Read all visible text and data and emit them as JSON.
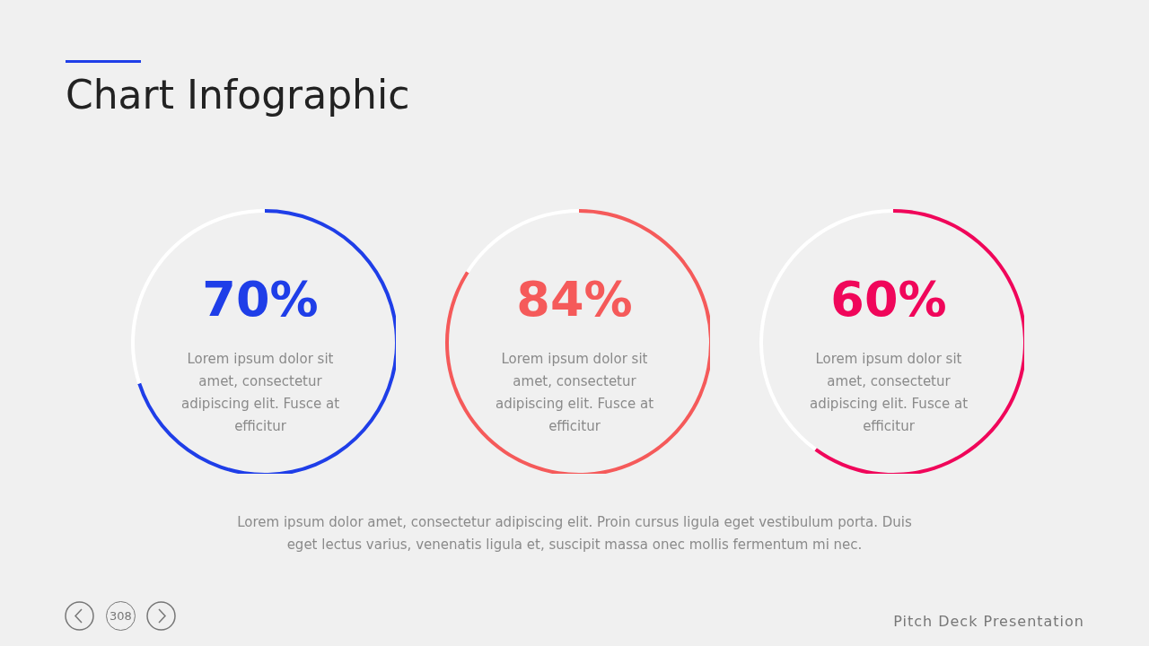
{
  "chart_data": [
    {
      "type": "other",
      "title": "Chart Infographic",
      "annotations": [
        "Lorem ipsum dolor amet, consectetur adipiscing elit. Proin cursus ligula eget vestibulum porta. Duis eget lectus varius, venenatis ligula et, suscipit massa onec mollis fermentum mi nec.",
        "308",
        "Pitch Deck Presentation"
      ]
    },
    {
      "type": "donut",
      "categories": [
        null,
        null
      ],
      "values": [
        70,
        30
      ],
      "colors": [
        "#1f3ee8",
        "#ffffff"
      ],
      "value_labels": [
        "70%",
        null
      ],
      "annotations": [
        "Lorem ipsum dolor sit amet, consectetur adipiscing elit. Fusce at efficitur"
      ]
    },
    {
      "type": "donut",
      "categories": [
        null,
        null
      ],
      "values": [
        84,
        16
      ],
      "colors": [
        "#f55a5a",
        "#ffffff"
      ],
      "value_labels": [
        "84%",
        null
      ],
      "annotations": [
        "Lorem ipsum dolor sit amet, consectetur adipiscing elit. Fusce at efficitur"
      ]
    },
    {
      "type": "donut",
      "categories": [
        null,
        null
      ],
      "values": [
        60,
        40
      ],
      "colors": [
        "#f0065a",
        "#ffffff"
      ],
      "value_labels": [
        "60%",
        null
      ],
      "annotations": [
        "Lorem ipsum dolor sit amet, consectetur adipiscing elit. Fusce at efficitur"
      ]
    }
  ]
}
